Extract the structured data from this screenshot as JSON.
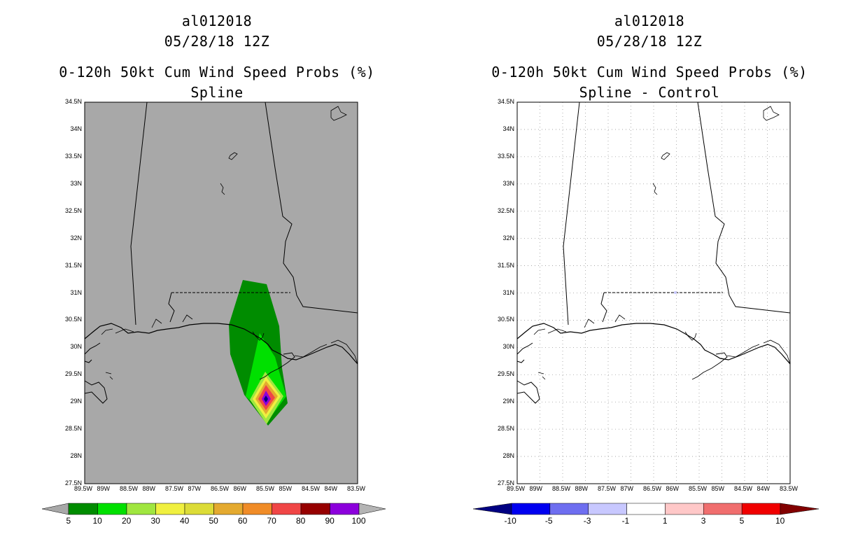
{
  "left": {
    "storm_id": "al012018",
    "datetime": "05/28/18 12Z",
    "product": "0-120h 50kt Cum Wind Speed Probs (%)",
    "subtitle": "Spline",
    "colorbar": {
      "labels": [
        "5",
        "10",
        "20",
        "30",
        "40",
        "50",
        "60",
        "70",
        "80",
        "90",
        "100"
      ],
      "colors": [
        "#a8a8a8",
        "#008c00",
        "#00e000",
        "#a0e640",
        "#f0f040",
        "#dcdc38",
        "#e4aa30",
        "#f08c28",
        "#f04646",
        "#960000",
        "#8c00dc",
        "#b4b4b4"
      ]
    }
  },
  "right": {
    "storm_id": "al012018",
    "datetime": "05/28/18 12Z",
    "product": "0-120h 50kt Cum Wind Speed Probs (%)",
    "subtitle": "Spline - Control",
    "colorbar": {
      "labels": [
        "-10",
        "-5",
        "-3",
        "-1",
        "1",
        "3",
        "5",
        "10"
      ],
      "colors": [
        "#000082",
        "#0000f0",
        "#6e6ef0",
        "#c8c8ff",
        "#ffffff",
        "#ffc8c8",
        "#f06e6e",
        "#f00000",
        "#820000"
      ]
    }
  },
  "axes": {
    "lat_labels": [
      "34.5N",
      "34N",
      "33.5N",
      "33N",
      "32.5N",
      "32N",
      "31.5N",
      "31N",
      "30.5N",
      "30N",
      "29.5N",
      "29N",
      "28.5N",
      "28N",
      "27.5N"
    ],
    "lon_labels": [
      "89.5W",
      "89W",
      "88.5W",
      "88W",
      "87.5W",
      "87W",
      "86.5W",
      "86W",
      "85.5W",
      "85W",
      "84.5W",
      "84W",
      "83.5W"
    ],
    "lat_range": [
      27.5,
      34.5
    ],
    "lon_range": [
      -89.5,
      -83.5
    ]
  },
  "colors": {
    "map_background_left": "#a8a8a8",
    "grid": "#9a9a9a"
  }
}
